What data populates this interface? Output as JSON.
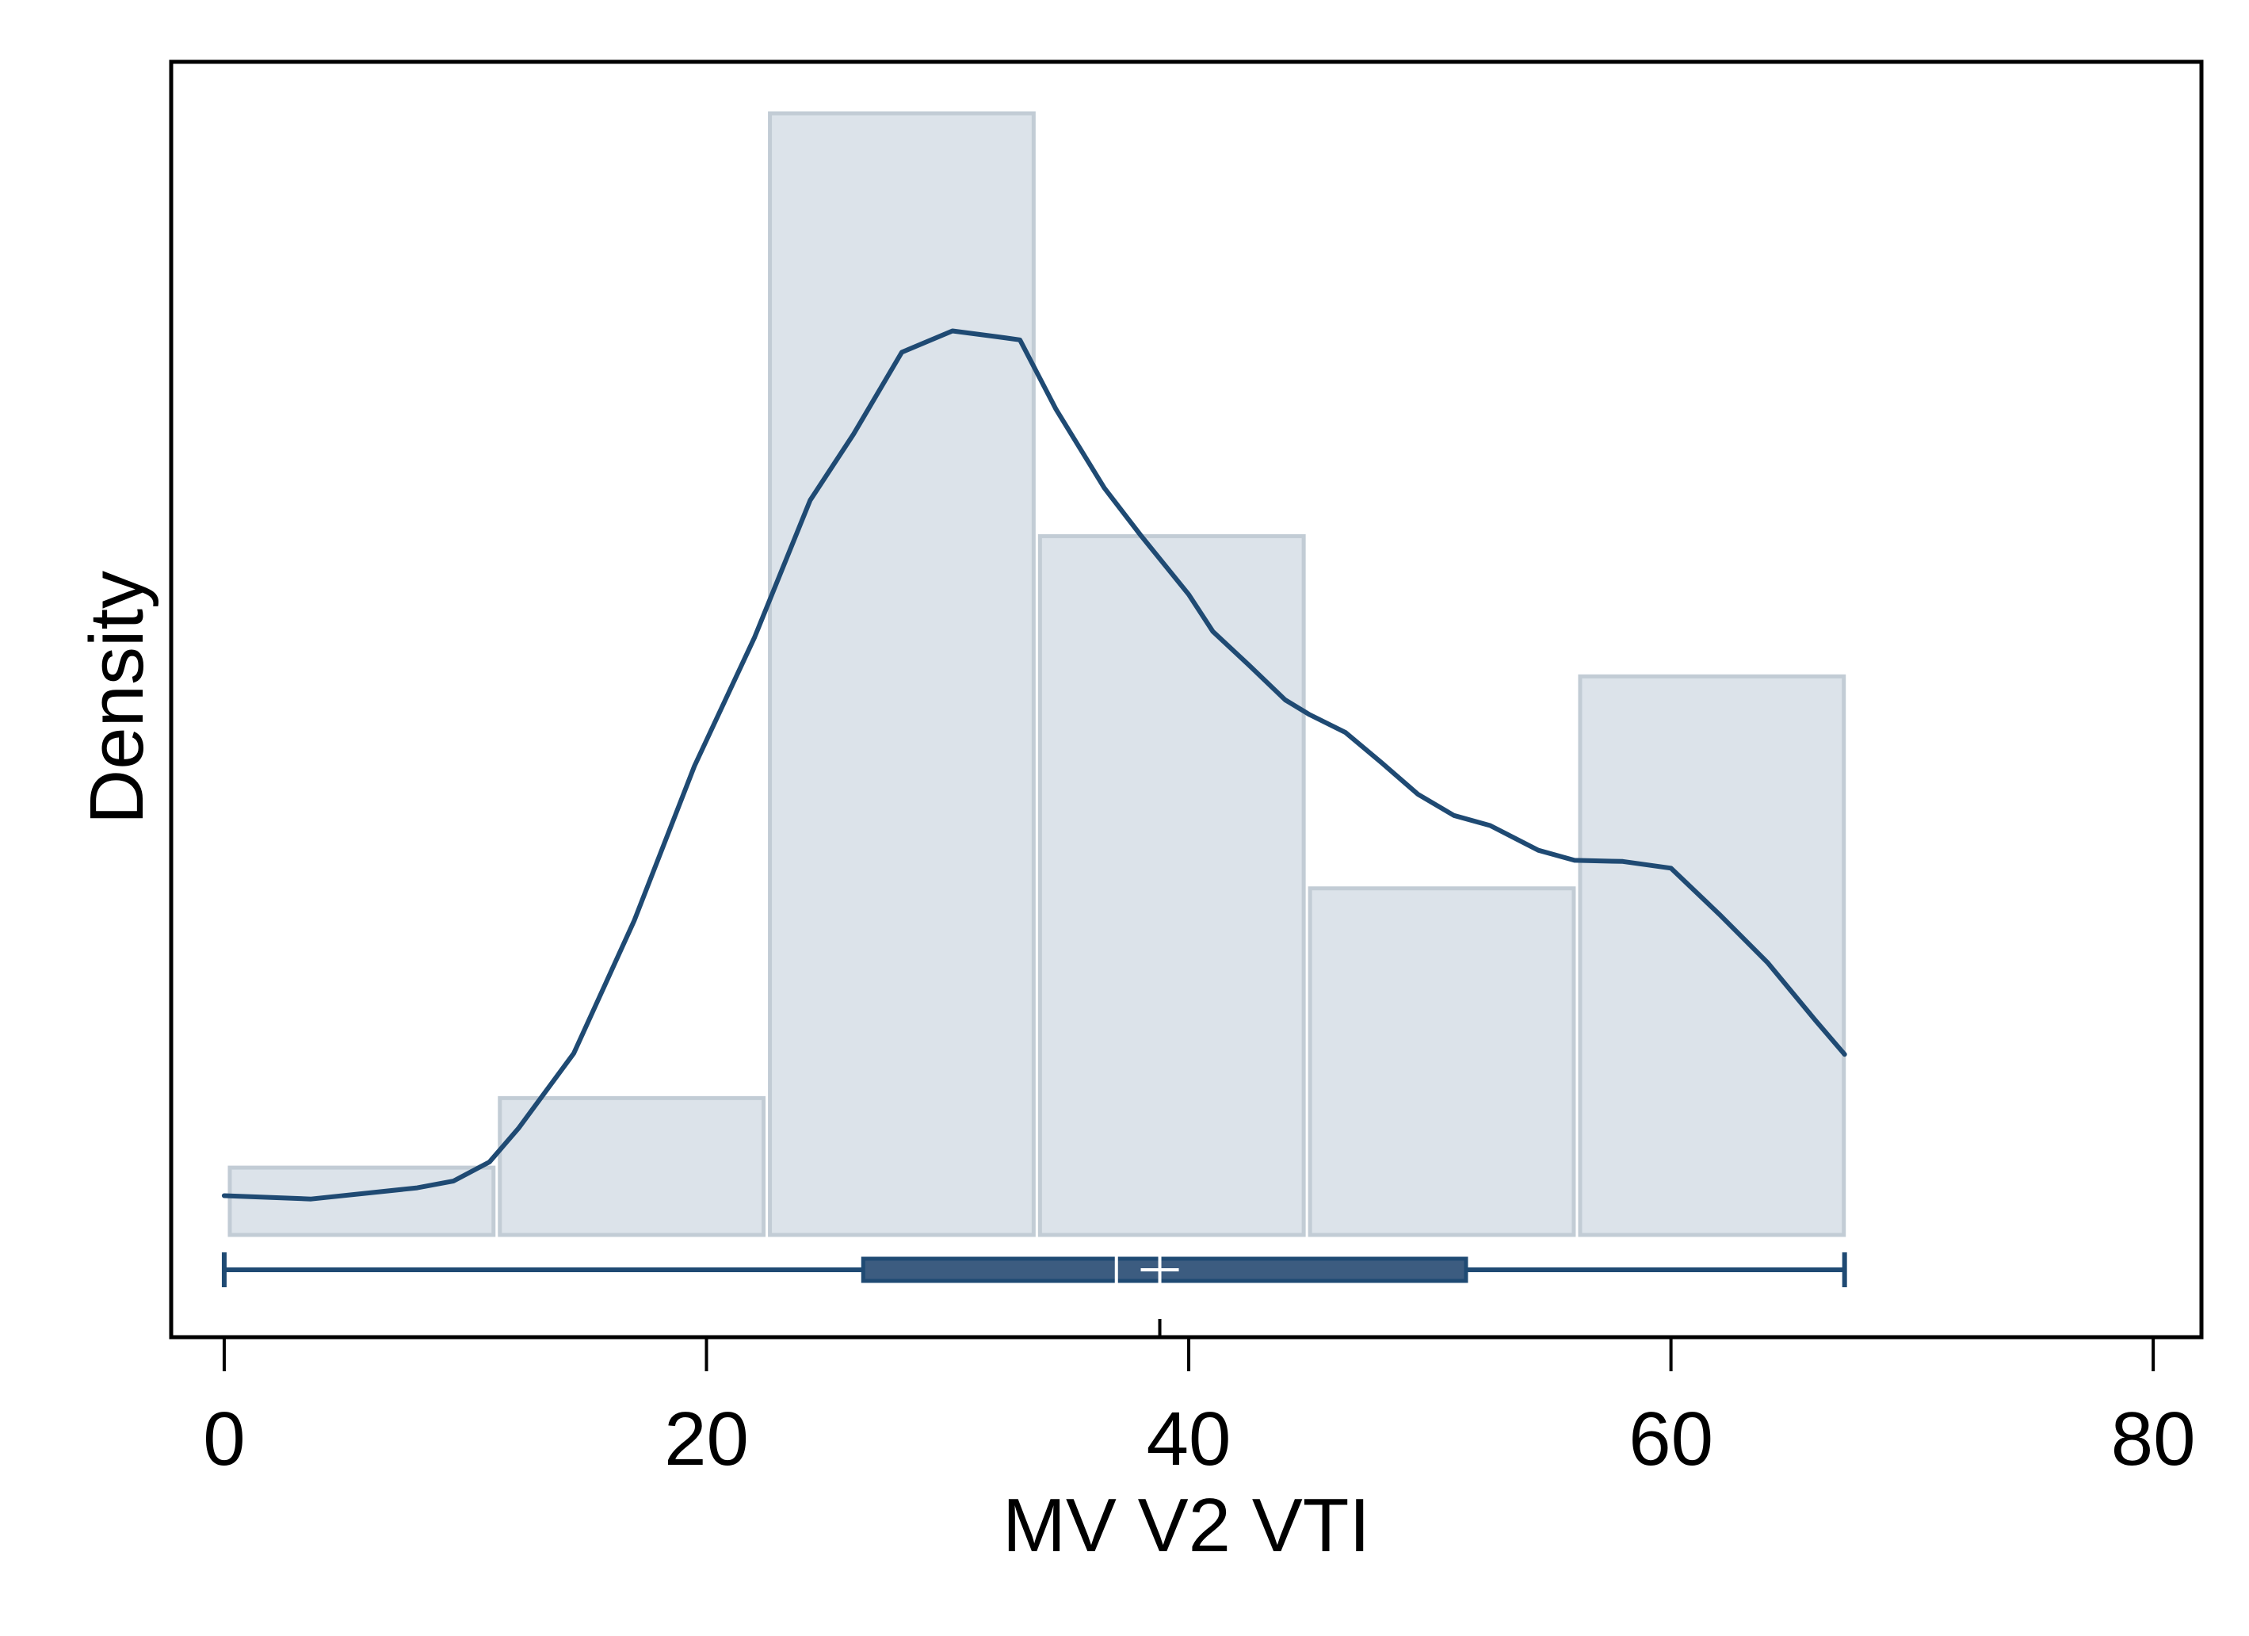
{
  "chart_data": {
    "type": "histogram",
    "title": "",
    "xlabel": "MV V2 VTI",
    "ylabel": "Density",
    "xlim": [
      -2.2,
      82
    ],
    "xticks": [
      0,
      20,
      40,
      60,
      80
    ],
    "grid": false,
    "legend": "none",
    "y_tick_labels_shown": false,
    "histogram": {
      "bin_edges": [
        0.1,
        11.3,
        22.5,
        33.7,
        44.9,
        56.1,
        67.3
      ],
      "relative_heights": [
        0.06,
        0.122,
        1.0,
        0.623,
        0.309,
        0.498
      ]
    },
    "kde": {
      "x": [
        0,
        3.6,
        8,
        9.5,
        11,
        12.2,
        14.5,
        17,
        19.5,
        22,
        24.3,
        26.1,
        28.1,
        30.2,
        32,
        33,
        34.5,
        36.5,
        38,
        40,
        41,
        42.5,
        44,
        45,
        46.5,
        48,
        49.5,
        51,
        52.5,
        54.5,
        56,
        58,
        60,
        62,
        64,
        66,
        67.2
      ],
      "relative_density": [
        0.035,
        0.032,
        0.042,
        0.048,
        0.065,
        0.095,
        0.162,
        0.28,
        0.418,
        0.533,
        0.655,
        0.714,
        0.787,
        0.806,
        0.801,
        0.798,
        0.736,
        0.666,
        0.624,
        0.571,
        0.538,
        0.508,
        0.477,
        0.464,
        0.448,
        0.421,
        0.393,
        0.374,
        0.365,
        0.343,
        0.334,
        0.333,
        0.327,
        0.286,
        0.243,
        0.191,
        0.161
      ]
    },
    "boxplot": {
      "min": 0,
      "q1": 26.5,
      "median": 37,
      "mean": 38.8,
      "q3": 51.5,
      "max": 67.2
    },
    "colors": {
      "bar_fill": "#dce3ea",
      "bar_edge": "#c2ccd5",
      "line": "#1f4a73",
      "box_fill": "#3c5c80",
      "axis": "#000000",
      "marker": "#ffffff"
    }
  }
}
